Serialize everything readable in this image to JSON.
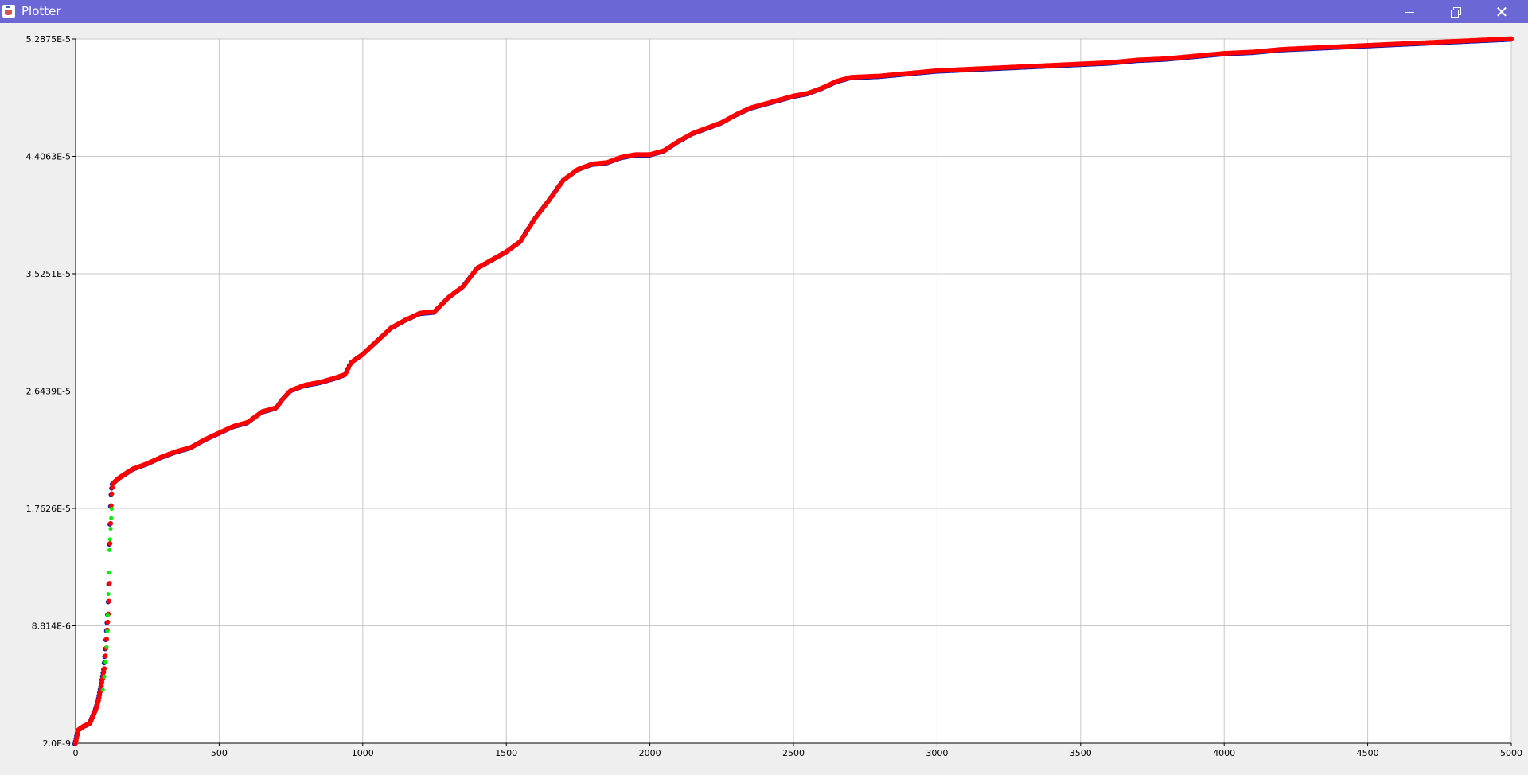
{
  "window": {
    "title": "Plotter",
    "icon": "java-cup-icon",
    "controls": {
      "minimize": "minimize-icon",
      "maximize": "restore-icon",
      "close": "close-icon"
    }
  },
  "chart_data": {
    "type": "scatter",
    "title": "",
    "xlabel": "",
    "ylabel": "",
    "xlim": [
      0,
      5000
    ],
    "ylim": [
      2e-09,
      5.2875e-05
    ],
    "x_ticks": [
      0,
      500,
      1000,
      1500,
      2000,
      2500,
      3000,
      3500,
      4000,
      4500,
      5000
    ],
    "x_tick_labels": [
      "0",
      "500",
      "1000",
      "1500",
      "2000",
      "2500",
      "3000",
      "3500",
      "4000",
      "4500",
      "5000"
    ],
    "y_ticks": [
      2e-09,
      8.814e-06,
      1.7626e-05,
      2.6439e-05,
      3.5251e-05,
      4.4063e-05,
      5.2875e-05
    ],
    "y_tick_labels": [
      "2.0E-9",
      "8.814E-6",
      "1.7626E-5",
      "2.6439E-5",
      "3.5251E-5",
      "4.4063E-5",
      "5.2875E-5"
    ],
    "grid": true,
    "colors": {
      "series_main": "#ff0000",
      "series_under": "#1a1aa6",
      "series_green": "#00ee00",
      "grid": "#c8c8c8"
    },
    "series": [
      {
        "color": "#ff0000",
        "x": [
          0,
          10,
          30,
          50,
          60,
          70,
          80,
          90,
          100,
          105,
          110,
          115,
          118,
          120,
          122,
          125,
          128,
          130,
          150,
          200,
          250,
          300,
          350,
          400,
          450,
          500,
          550,
          600,
          650,
          700,
          720,
          750,
          800,
          850,
          900,
          940,
          960,
          1000,
          1050,
          1100,
          1150,
          1200,
          1250,
          1300,
          1350,
          1400,
          1450,
          1500,
          1550,
          1600,
          1650,
          1700,
          1750,
          1800,
          1850,
          1900,
          1950,
          2000,
          2050,
          2100,
          2150,
          2200,
          2250,
          2300,
          2350,
          2400,
          2450,
          2500,
          2550,
          2600,
          2650,
          2700,
          2800,
          2900,
          3000,
          3100,
          3200,
          3300,
          3400,
          3500,
          3600,
          3700,
          3800,
          3900,
          4000,
          4100,
          4200,
          4300,
          4400,
          4500,
          4600,
          4700,
          4800,
          4900,
          5000
        ],
        "y": [
          2e-09,
          1e-06,
          1.3e-06,
          1.5e-06,
          2e-06,
          2.5e-06,
          3.2e-06,
          4.3e-06,
          5.6e-06,
          6.8e-06,
          8.5e-06,
          1e-05,
          1.2e-05,
          1.5e-05,
          1.65e-05,
          1.85e-05,
          1.92e-05,
          1.95e-05,
          1.99e-05,
          2.06e-05,
          2.1e-05,
          2.15e-05,
          2.19e-05,
          2.22e-05,
          2.28e-05,
          2.33e-05,
          2.38e-05,
          2.41e-05,
          2.49e-05,
          2.52e-05,
          2.58e-05,
          2.65e-05,
          2.69e-05,
          2.71e-05,
          2.74e-05,
          2.77e-05,
          2.86e-05,
          2.92e-05,
          3.02e-05,
          3.12e-05,
          3.18e-05,
          3.23e-05,
          3.24e-05,
          3.35e-05,
          3.43e-05,
          3.57e-05,
          3.63e-05,
          3.69e-05,
          3.77e-05,
          3.94e-05,
          4.08e-05,
          4.23e-05,
          4.31e-05,
          4.35e-05,
          4.36e-05,
          4.4e-05,
          4.42e-05,
          4.42e-05,
          4.45e-05,
          4.52e-05,
          4.58e-05,
          4.62e-05,
          4.66e-05,
          4.72e-05,
          4.77e-05,
          4.8e-05,
          4.83e-05,
          4.86e-05,
          4.88e-05,
          4.92e-05,
          4.97e-05,
          5e-05,
          5.01e-05,
          5.03e-05,
          5.05e-05,
          5.06e-05,
          5.07e-05,
          5.08e-05,
          5.09e-05,
          5.1e-05,
          5.11e-05,
          5.13e-05,
          5.14e-05,
          5.16e-05,
          5.18e-05,
          5.19e-05,
          5.21e-05,
          5.22e-05,
          5.23e-05,
          5.24e-05,
          5.25e-05,
          5.26e-05,
          5.27e-05,
          5.28e-05,
          5.29e-05
        ]
      },
      {
        "color": "#00ee00",
        "x": [
          95,
          100,
          105,
          108,
          110,
          112,
          114,
          116,
          118,
          120,
          122,
          124,
          126
        ],
        "y": [
          4e-06,
          5e-06,
          6.1e-06,
          7.2e-06,
          8.4e-06,
          9.6e-06,
          1.12e-05,
          1.28e-05,
          1.45e-05,
          1.53e-05,
          1.61e-05,
          1.69e-05,
          1.76e-05
        ]
      }
    ]
  }
}
